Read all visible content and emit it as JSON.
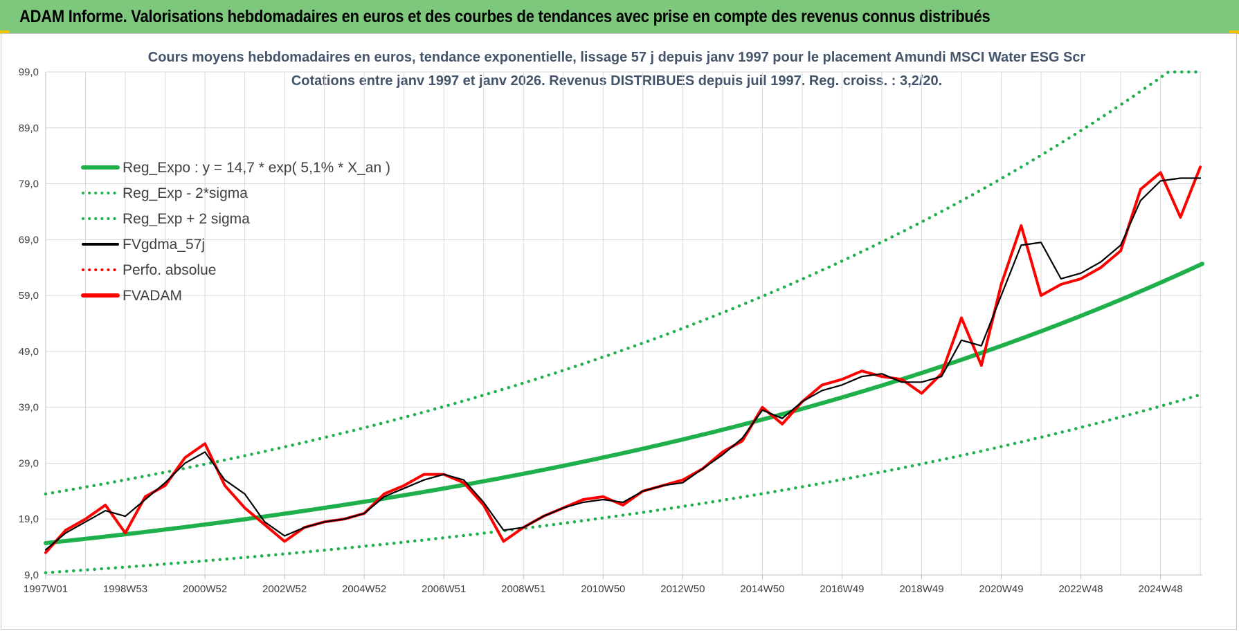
{
  "header": {
    "title": "ADAM Informe. Valorisations hebdomadaires en euros et des courbes de tendances avec prise en compte des revenus connus distribués",
    "background": "#7ec87e"
  },
  "chart_data": {
    "type": "line",
    "title": "Cours moyens hebdomadaires en euros, tendance exponentielle, lissage 57 j depuis janv 1997  pour le placement Amundi MSCI Water ESG Scr",
    "subtitle": "Cotations entre janv 1997 et janv 2026. Revenus DISTRIBUES depuis juil 1997. Reg.  croiss. : 3,2/20.",
    "xlabel": "",
    "ylabel": "",
    "ylim": [
      9,
      99
    ],
    "xlim": [
      1997.0,
      2026.05
    ],
    "grid": true,
    "legend_position": "top-left",
    "y_ticks": [
      "9,0",
      "19,0",
      "29,0",
      "39,0",
      "49,0",
      "59,0",
      "69,0",
      "79,0",
      "89,0",
      "99,0"
    ],
    "x_ticks": [
      {
        "label": "1997W01",
        "x": 1997.0
      },
      {
        "label": "1998W53",
        "x": 1999.0
      },
      {
        "label": "2000W52",
        "x": 2001.0
      },
      {
        "label": "2002W52",
        "x": 2003.0
      },
      {
        "label": "2004W52",
        "x": 2005.0
      },
      {
        "label": "2006W51",
        "x": 2007.0
      },
      {
        "label": "2008W51",
        "x": 2009.0
      },
      {
        "label": "2010W50",
        "x": 2011.0
      },
      {
        "label": "2012W50",
        "x": 2013.0
      },
      {
        "label": "2014W50",
        "x": 2015.0
      },
      {
        "label": "2016W49",
        "x": 2017.0
      },
      {
        "label": "2018W49",
        "x": 2019.0
      },
      {
        "label": "2020W49",
        "x": 2021.0
      },
      {
        "label": "2022W48",
        "x": 2023.0
      },
      {
        "label": "2024W48",
        "x": 2025.0
      }
    ],
    "series": [
      {
        "name": "Reg_Expo : y = 14,7 * exp( 5,1% *  X_an )",
        "color": "#1fb04c",
        "style": "solid-thick",
        "formula": {
          "a": 14.7,
          "rate": 0.051,
          "x0": 1997.0
        }
      },
      {
        "name": "Reg_Exp - 2*sigma",
        "color": "#1fb04c",
        "style": "dotted",
        "formula": {
          "a": 9.4,
          "rate": 0.051,
          "x0": 1997.0
        }
      },
      {
        "name": "Reg_Exp + 2 sigma",
        "color": "#1fb04c",
        "style": "dotted",
        "formula": {
          "a": 23.5,
          "rate": 0.051,
          "x0": 1997.0,
          "cap": 99
        }
      },
      {
        "name": "FVgdma_57j",
        "color": "#000000",
        "style": "solid",
        "x": [
          1997.0,
          1997.5,
          1998.0,
          1998.5,
          1999.0,
          1999.5,
          2000.0,
          2000.5,
          2001.0,
          2001.5,
          2002.0,
          2002.5,
          2003.0,
          2003.5,
          2004.0,
          2004.5,
          2005.0,
          2005.5,
          2006.0,
          2006.5,
          2007.0,
          2007.5,
          2008.0,
          2008.5,
          2009.0,
          2009.5,
          2010.0,
          2010.5,
          2011.0,
          2011.5,
          2012.0,
          2012.5,
          2013.0,
          2013.5,
          2014.0,
          2014.5,
          2015.0,
          2015.5,
          2016.0,
          2016.5,
          2017.0,
          2017.5,
          2018.0,
          2018.5,
          2019.0,
          2019.5,
          2020.0,
          2020.5,
          2021.0,
          2021.5,
          2022.0,
          2022.5,
          2023.0,
          2023.5,
          2024.0,
          2024.5,
          2025.0,
          2025.5,
          2026.0
        ],
        "values": [
          13.5,
          16.5,
          18.5,
          20.5,
          19.5,
          22.5,
          25.5,
          29,
          31,
          26,
          23.5,
          18.5,
          16,
          17.5,
          18.5,
          19,
          20,
          23,
          24.5,
          26,
          27,
          26,
          22,
          17,
          17.5,
          19.5,
          21,
          22,
          22.5,
          22,
          24,
          25,
          25.5,
          28,
          30.5,
          33.5,
          38.5,
          37,
          40,
          42,
          43,
          44.5,
          45,
          43.5,
          43.5,
          44.5,
          51,
          50,
          59,
          68,
          68.5,
          62,
          63,
          65,
          68,
          76,
          79.5,
          80,
          80
        ]
      },
      {
        "name": "Perfo. absolue",
        "color": "#ff0000",
        "style": "dotted",
        "values": []
      },
      {
        "name": "FVADAM",
        "color": "#ff0000",
        "style": "solid-thick",
        "x": [
          1997.0,
          1997.5,
          1998.0,
          1998.5,
          1999.0,
          1999.5,
          2000.0,
          2000.5,
          2001.0,
          2001.5,
          2002.0,
          2002.5,
          2003.0,
          2003.5,
          2004.0,
          2004.5,
          2005.0,
          2005.5,
          2006.0,
          2006.5,
          2007.0,
          2007.5,
          2008.0,
          2008.5,
          2009.0,
          2009.5,
          2010.0,
          2010.5,
          2011.0,
          2011.5,
          2012.0,
          2012.5,
          2013.0,
          2013.5,
          2014.0,
          2014.5,
          2015.0,
          2015.5,
          2016.0,
          2016.5,
          2017.0,
          2017.5,
          2018.0,
          2018.5,
          2019.0,
          2019.5,
          2020.0,
          2020.5,
          2021.0,
          2021.5,
          2022.0,
          2022.5,
          2023.0,
          2023.5,
          2024.0,
          2024.5,
          2025.0,
          2025.5,
          2026.0
        ],
        "values": [
          13,
          17,
          19,
          21.5,
          16.5,
          23,
          25,
          30,
          32.5,
          25,
          21,
          18,
          15,
          17.5,
          18.5,
          19,
          20,
          23.5,
          25,
          27,
          27,
          25.5,
          21.5,
          15,
          17.5,
          19.5,
          21,
          22.5,
          23,
          21.5,
          24,
          25,
          26,
          28,
          31,
          33,
          39,
          36,
          40,
          43,
          44,
          45.5,
          44.5,
          44,
          41.5,
          45,
          55,
          46.5,
          61,
          71.5,
          59,
          61,
          62,
          64,
          67,
          78,
          81,
          73,
          82
        ]
      }
    ]
  }
}
